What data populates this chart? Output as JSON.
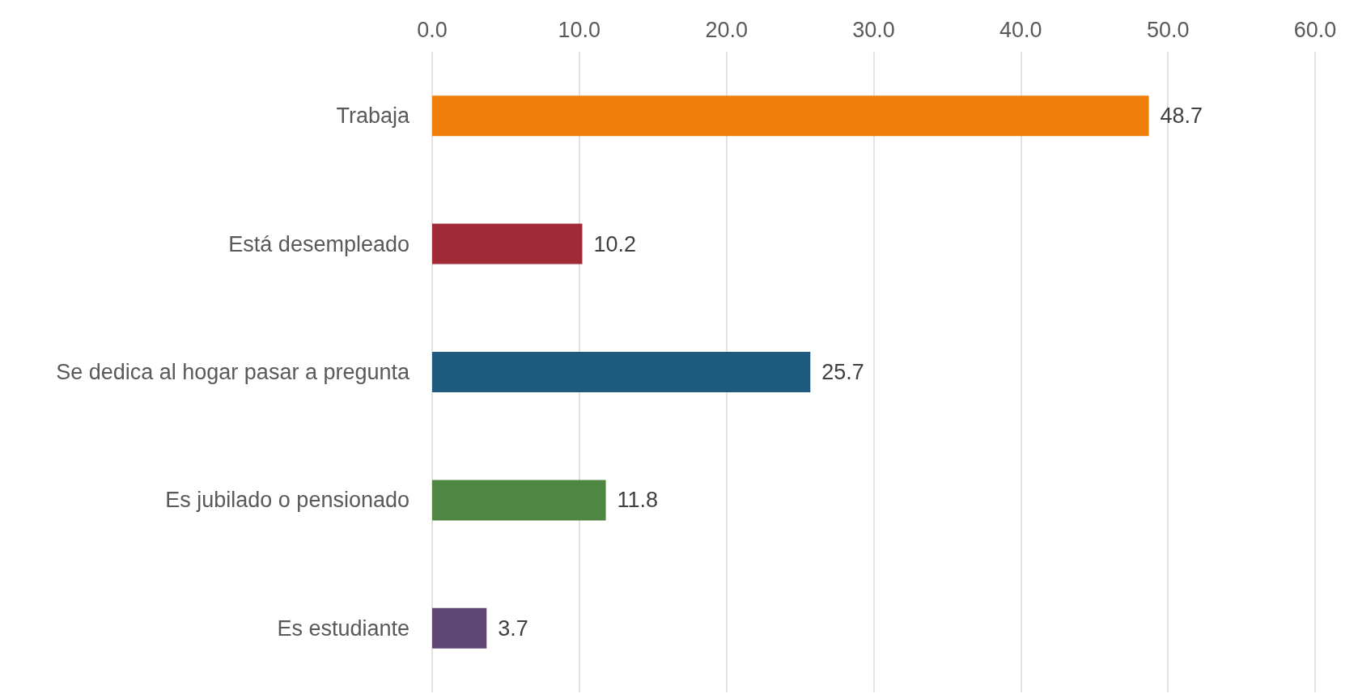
{
  "chart_data": {
    "type": "bar",
    "orientation": "horizontal",
    "categories": [
      "Trabaja",
      "Está desempleado",
      "Se dedica al hogar pasar a pregunta",
      "Es jubilado o pensionado",
      "Es estudiante"
    ],
    "values": [
      48.7,
      10.2,
      25.7,
      11.8,
      3.7
    ],
    "colors": [
      "#ef7f0a",
      "#a12a38",
      "#1d5a7e",
      "#4e8642",
      "#5f4775"
    ],
    "xlim": [
      0,
      60
    ],
    "xticks": [
      {
        "value": 0,
        "label": "0.0"
      },
      {
        "value": 10,
        "label": "10.0"
      },
      {
        "value": 20,
        "label": "20.0"
      },
      {
        "value": 30,
        "label": "30.0"
      },
      {
        "value": 40,
        "label": "40.0"
      },
      {
        "value": 50,
        "label": "50.0"
      },
      {
        "value": 60,
        "label": "60.0"
      }
    ],
    "grid": "x",
    "data_labels": true
  }
}
